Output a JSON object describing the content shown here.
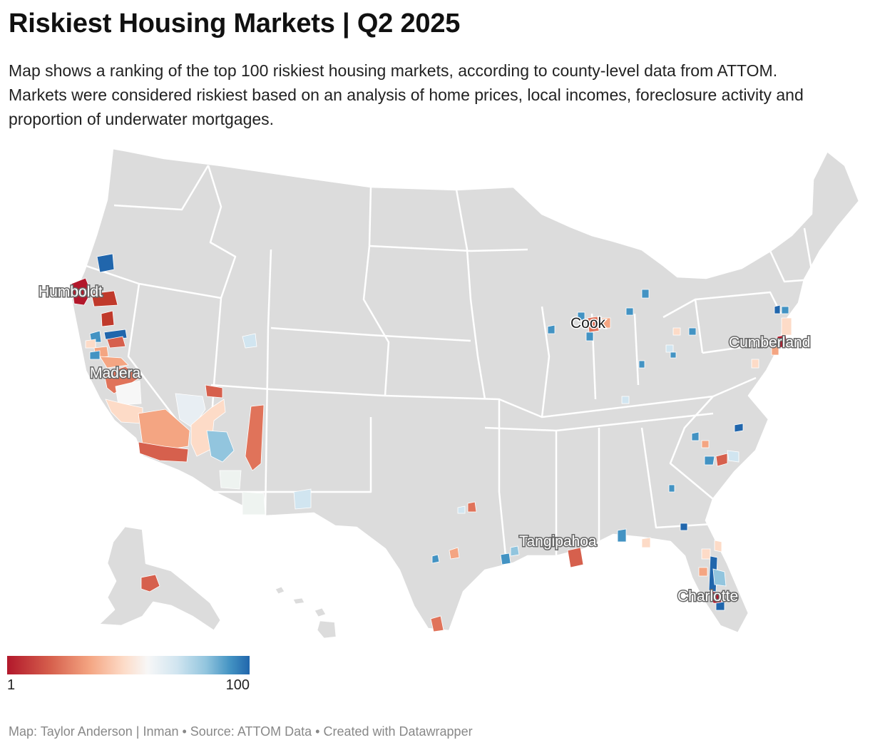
{
  "header": {
    "title": "Riskiest Housing Markets | Q2 2025",
    "subtitle": "Map shows a ranking of the top 100 riskiest housing markets, according to county-level data from ATTOM. Markets were considered riskiest based on an analysis of home prices, local incomes, foreclosure activity and proportion of underwater mortgages."
  },
  "map": {
    "base_color": "#dcdcdc",
    "border_color": "#ffffff",
    "labels": [
      {
        "name": "Humboldt"
      },
      {
        "name": "Madera"
      },
      {
        "name": "Cook"
      },
      {
        "name": "Cumberland"
      },
      {
        "name": "Tangipahoa"
      },
      {
        "name": "Charlotte"
      }
    ]
  },
  "legend": {
    "min": "1",
    "max": "100",
    "colors": [
      "#b2182b",
      "#d6604d",
      "#f4a582",
      "#fddbc7",
      "#f7f7f7",
      "#d1e5f0",
      "#92c5de",
      "#4393c3",
      "#2166ac"
    ]
  },
  "footer": {
    "text": "Map: Taylor Anderson | Inman • Source: ATTOM Data • Created with Datawrapper"
  }
}
